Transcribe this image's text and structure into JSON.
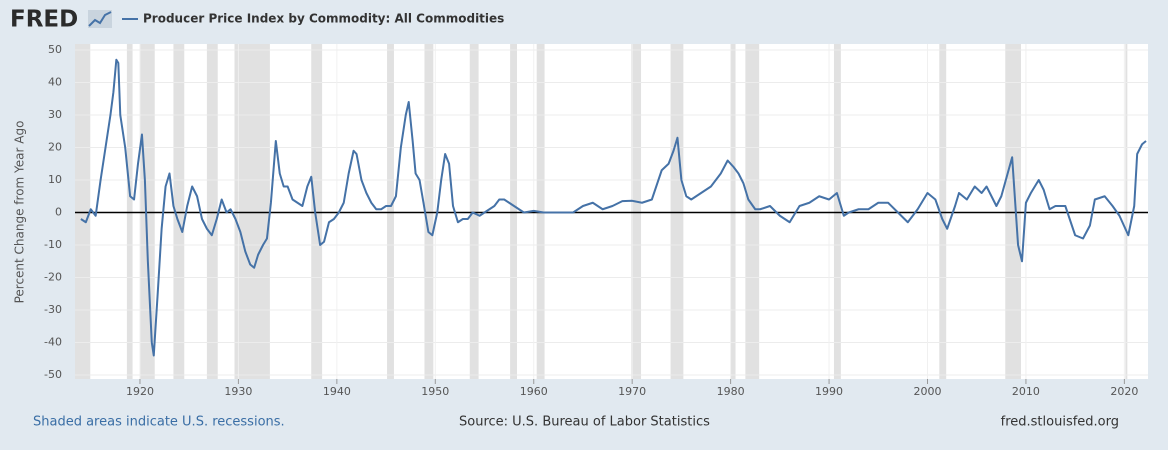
{
  "chart_data": {
    "type": "line",
    "brand": "FRED",
    "title": "Producer Price Index by Commodity: All Commodities",
    "y_label": "Percent Change from Year Ago",
    "footer_left": "Shaded areas indicate U.S. recessions.",
    "source": "Source: U.S. Bureau of Labor Statistics",
    "site": "fred.stlouisfed.org",
    "xlim": [
      1913.4,
      2022.4
    ],
    "ylim": [
      -50,
      50
    ],
    "xticks": [
      1920,
      1930,
      1940,
      1950,
      1960,
      1970,
      1980,
      1990,
      2000,
      2010,
      2020
    ],
    "yticks": [
      -50,
      -40,
      -30,
      -20,
      -10,
      0,
      10,
      20,
      30,
      40,
      50
    ],
    "grid": true,
    "recessions": [
      [
        1913,
        1914.95
      ],
      [
        1918.67,
        1919.25
      ],
      [
        1920.0,
        1921.5
      ],
      [
        1923.4,
        1924.5
      ],
      [
        1926.8,
        1927.9
      ],
      [
        1929.6,
        1933.2
      ],
      [
        1937.4,
        1938.5
      ],
      [
        1945.1,
        1945.8
      ],
      [
        1948.9,
        1949.8
      ],
      [
        1953.5,
        1954.4
      ],
      [
        1957.6,
        1958.3
      ],
      [
        1960.3,
        1961.1
      ],
      [
        1969.9,
        1970.9
      ],
      [
        1973.9,
        1975.2
      ],
      [
        1980.0,
        1980.5
      ],
      [
        1981.5,
        1982.9
      ],
      [
        1990.5,
        1991.2
      ],
      [
        2001.2,
        2001.9
      ],
      [
        2007.9,
        2009.5
      ],
      [
        2020.1,
        2020.3
      ]
    ],
    "x": [
      1914,
      1914.5,
      1915,
      1915.5,
      1916,
      1916.5,
      1917,
      1917.3,
      1917.6,
      1917.8,
      1918,
      1918.5,
      1918.8,
      1919,
      1919.4,
      1919.8,
      1920.2,
      1920.5,
      1920.8,
      1921.2,
      1921.4,
      1921.8,
      1922.2,
      1922.6,
      1923,
      1923.4,
      1923.8,
      1924.3,
      1924.8,
      1925.3,
      1925.8,
      1926.3,
      1926.8,
      1927.3,
      1927.8,
      1928.3,
      1928.8,
      1929.2,
      1929.7,
      1930.2,
      1930.7,
      1931.2,
      1931.6,
      1932,
      1932.5,
      1932.9,
      1933.3,
      1933.8,
      1934.2,
      1934.6,
      1935,
      1935.5,
      1936,
      1936.5,
      1937,
      1937.4,
      1937.8,
      1938.3,
      1938.7,
      1939.2,
      1939.7,
      1940.2,
      1940.7,
      1941.2,
      1941.7,
      1942,
      1942.5,
      1943,
      1943.5,
      1944,
      1944.5,
      1945,
      1945.5,
      1946,
      1946.5,
      1947,
      1947.3,
      1947.7,
      1948,
      1948.4,
      1948.8,
      1949.3,
      1949.7,
      1950.2,
      1950.6,
      1951,
      1951.4,
      1951.8,
      1952.3,
      1952.8,
      1953.3,
      1953.8,
      1954.5,
      1955,
      1955.5,
      1956,
      1956.5,
      1957,
      1957.5,
      1958,
      1958.5,
      1959,
      1960,
      1961,
      1962,
      1963,
      1964,
      1965,
      1966,
      1967,
      1968,
      1969,
      1970,
      1971,
      1972,
      1973,
      1973.7,
      1974.2,
      1974.6,
      1975,
      1975.5,
      1976,
      1977,
      1978,
      1979,
      1979.7,
      1980.3,
      1980.8,
      1981.3,
      1981.8,
      1982.5,
      1983,
      1984,
      1985,
      1986,
      1987,
      1988,
      1989,
      1990,
      1990.8,
      1991.5,
      1992,
      1993,
      1994,
      1995,
      1996,
      1997,
      1998,
      1999,
      2000,
      2000.8,
      2001.5,
      2002,
      2002.8,
      2003.2,
      2004,
      2004.8,
      2005.5,
      2006,
      2007,
      2007.5,
      2008.6,
      2009.2,
      2009.6,
      2010,
      2010.5,
      2011.3,
      2011.8,
      2012.4,
      2013,
      2014,
      2015,
      2015.8,
      2016.5,
      2017,
      2018,
      2018.8,
      2019.5,
      2020.4,
      2021,
      2021.3,
      2021.8,
      2022.2
    ],
    "series": [
      {
        "name": "Producer Price Index by Commodity: All Commodities",
        "color": "#4572a7",
        "values": [
          -2,
          -3,
          1,
          -1,
          10,
          20,
          30,
          37,
          47,
          46,
          30,
          20,
          11,
          5,
          4,
          15,
          24,
          10,
          -15,
          -40,
          -44,
          -25,
          -5,
          8,
          12,
          2,
          -2,
          -6,
          2,
          8,
          5,
          -2,
          -5,
          -7,
          -2,
          4,
          0,
          1,
          -2,
          -6,
          -12,
          -16,
          -17,
          -13,
          -10,
          -8,
          3,
          22,
          12,
          8,
          8,
          4,
          3,
          2,
          8,
          11,
          0,
          -10,
          -9,
          -3,
          -2,
          0,
          3,
          12,
          19,
          18,
          10,
          6,
          3,
          1,
          1,
          2,
          2,
          5,
          20,
          30,
          34,
          22,
          12,
          10,
          3,
          -6,
          -7,
          0,
          10,
          18,
          15,
          2,
          -3,
          -2,
          -2,
          0,
          -1,
          0,
          1,
          2,
          4,
          4,
          3,
          2,
          1,
          0,
          0.5,
          0,
          0,
          0,
          0,
          2,
          3,
          1,
          2,
          3.5,
          3.6,
          3,
          4,
          13,
          15,
          19,
          23,
          10,
          5,
          4,
          6,
          8,
          12,
          16,
          14,
          12,
          9,
          4,
          1,
          1,
          2,
          -1,
          -3,
          2,
          3,
          5,
          4,
          6,
          -1,
          0,
          1,
          1,
          3,
          3,
          0,
          -3,
          1,
          6,
          4,
          -2,
          -5,
          2,
          6,
          4,
          8,
          6,
          8,
          2,
          5,
          17,
          -10,
          -15,
          3,
          6,
          10,
          7,
          1,
          2,
          2,
          -7,
          -8,
          -4,
          4,
          5,
          2,
          -1,
          -7,
          2,
          18,
          21,
          22
        ]
      }
    ]
  }
}
